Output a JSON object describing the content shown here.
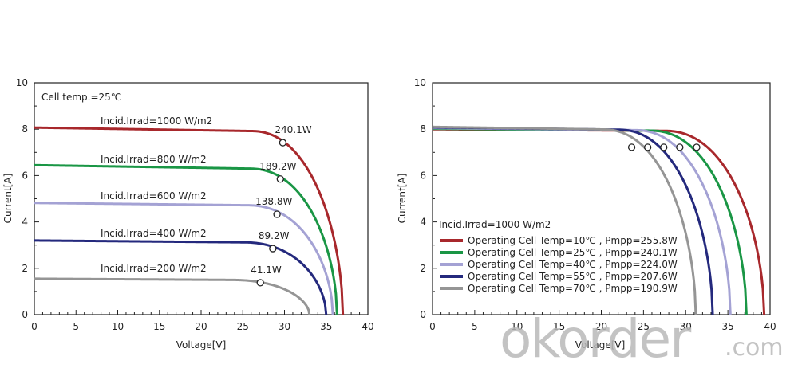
{
  "watermark": {
    "main": "okorder",
    "suffix": ".com"
  },
  "chart_data": [
    {
      "type": "line",
      "title": "",
      "xlabel": "Voltage[V]",
      "ylabel": "Current[A]",
      "xlim": [
        0,
        40
      ],
      "ylim": [
        0,
        10
      ],
      "xticks": [
        "0",
        "5",
        "10",
        "15",
        "20",
        "25",
        "30",
        "35",
        "40"
      ],
      "yticks": [
        "0",
        "2",
        "4",
        "6",
        "8",
        "10"
      ],
      "grid": false,
      "condition_note": "Cell temp.=25℃",
      "series": [
        {
          "name": "Incid.Irrad=1000 W/m2",
          "color": "#a8282c",
          "isc": 8.07,
          "voc": 37.0,
          "i_flat_end": 7.92,
          "knee": 26.0,
          "mpp": {
            "v": 29.8,
            "i": 7.42,
            "label": "240.1W"
          }
        },
        {
          "name": "Incid.Irrad=800 W/m2",
          "color": "#1a9645",
          "isc": 6.45,
          "voc": 36.3,
          "i_flat_end": 6.3,
          "knee": 25.8,
          "mpp": {
            "v": 29.5,
            "i": 5.85,
            "label": "189.2W"
          }
        },
        {
          "name": "Incid.Irrad=600 W/m2",
          "color": "#a4a2d4",
          "isc": 4.82,
          "voc": 35.8,
          "i_flat_end": 4.72,
          "knee": 25.5,
          "mpp": {
            "v": 29.1,
            "i": 4.33,
            "label": "138.8W"
          }
        },
        {
          "name": "Incid.Irrad=400 W/m2",
          "color": "#24297d",
          "isc": 3.2,
          "voc": 35.0,
          "i_flat_end": 3.12,
          "knee": 25.0,
          "mpp": {
            "v": 28.6,
            "i": 2.85,
            "label": "89.2W"
          }
        },
        {
          "name": "Incid.Irrad=200 W/m2",
          "color": "#959595",
          "isc": 1.55,
          "voc": 33.0,
          "i_flat_end": 1.5,
          "knee": 23.5,
          "mpp": {
            "v": 27.1,
            "i": 1.38,
            "label": "41.1W"
          }
        }
      ]
    },
    {
      "type": "line",
      "title": "",
      "xlabel": "Voltage[V]",
      "ylabel": "Current[A]",
      "xlim": [
        0,
        40
      ],
      "ylim": [
        0,
        10
      ],
      "xticks": [
        "0",
        "5",
        "10",
        "15",
        "20",
        "25",
        "30",
        "35",
        "40"
      ],
      "yticks": [
        "0",
        "2",
        "4",
        "6",
        "8",
        "10"
      ],
      "grid": false,
      "condition_note": "Incid.Irrad=1000 W/m2",
      "legend_position": "lower-left",
      "series": [
        {
          "name": "Operating Cell Temp=10℃ , Pmpp=255.8W",
          "color": "#a8282c",
          "isc": 8.0,
          "voc": 39.3,
          "i_flat_end": 7.93,
          "knee": 27.5,
          "mpp": {
            "v": 31.3,
            "i": 7.22
          }
        },
        {
          "name": "Operating Cell Temp=25℃ , Pmpp=240.1W",
          "color": "#1a9645",
          "isc": 8.02,
          "voc": 37.2,
          "i_flat_end": 7.94,
          "knee": 25.8,
          "mpp": {
            "v": 29.3,
            "i": 7.22
          }
        },
        {
          "name": "Operating Cell Temp=40℃ , Pmpp=224.0W",
          "color": "#a4a2d4",
          "isc": 8.05,
          "voc": 35.3,
          "i_flat_end": 7.96,
          "knee": 24.0,
          "mpp": {
            "v": 27.4,
            "i": 7.22
          }
        },
        {
          "name": "Operating Cell Temp=55℃ , Pmpp=207.6W",
          "color": "#24297d",
          "isc": 8.08,
          "voc": 33.2,
          "i_flat_end": 7.98,
          "knee": 22.0,
          "mpp": {
            "v": 25.5,
            "i": 7.22
          }
        },
        {
          "name": "Operating Cell Temp=70℃ , Pmpp=190.9W",
          "color": "#959595",
          "isc": 8.1,
          "voc": 31.2,
          "i_flat_end": 7.99,
          "knee": 20.2,
          "mpp": {
            "v": 23.6,
            "i": 7.22
          }
        }
      ]
    }
  ]
}
